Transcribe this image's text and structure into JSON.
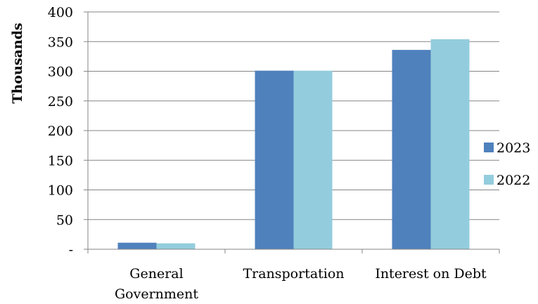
{
  "chart_data": {
    "type": "bar",
    "categories": [
      "General Government",
      "Transportation",
      "Interest on Debt"
    ],
    "category_lines": [
      [
        "General",
        "Government"
      ],
      [
        "Transportation"
      ],
      [
        "Interest on Debt"
      ]
    ],
    "series": [
      {
        "name": "2023",
        "color": "#4F81BD",
        "values": [
          11,
          301,
          336
        ]
      },
      {
        "name": "2022",
        "color": "#93CDDD",
        "values": [
          10,
          301,
          354
        ]
      }
    ],
    "ylabel": "Thousands",
    "ylim": [
      0,
      400
    ],
    "yticks": [
      0,
      50,
      100,
      150,
      200,
      250,
      300,
      350,
      400
    ],
    "ytick_labels": [
      "-",
      "50",
      "100",
      "150",
      "200",
      "250",
      "300",
      "350",
      "400"
    ],
    "grid": true,
    "legend": "right"
  }
}
